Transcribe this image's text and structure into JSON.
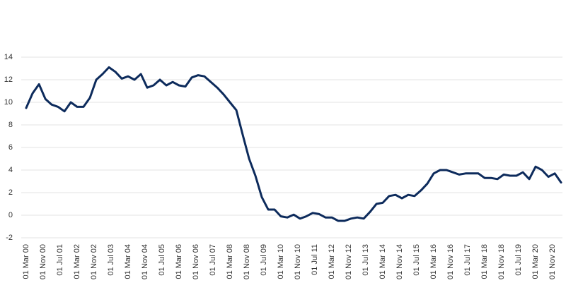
{
  "chart_data": {
    "type": "line",
    "color": "#0d2b5c",
    "grid": true,
    "x": [
      "2000-03-01",
      "2000-06-01",
      "2000-09-01",
      "2000-12-01",
      "2001-03-01",
      "2001-06-01",
      "2001-09-01",
      "2001-12-01",
      "2002-03-01",
      "2002-06-01",
      "2002-09-01",
      "2002-12-01",
      "2003-03-01",
      "2003-06-01",
      "2003-09-01",
      "2003-12-01",
      "2004-03-01",
      "2004-06-01",
      "2004-09-01",
      "2004-12-01",
      "2005-03-01",
      "2005-06-01",
      "2005-09-01",
      "2005-12-01",
      "2006-03-01",
      "2006-06-01",
      "2006-09-01",
      "2006-12-01",
      "2007-03-01",
      "2007-06-01",
      "2007-09-01",
      "2007-12-01",
      "2008-03-01",
      "2008-06-01",
      "2008-09-01",
      "2008-12-01",
      "2009-03-01",
      "2009-06-01",
      "2009-09-01",
      "2009-12-01",
      "2010-03-01",
      "2010-06-01",
      "2010-09-01",
      "2010-12-01",
      "2011-03-01",
      "2011-06-01",
      "2011-09-01",
      "2011-12-01",
      "2012-03-01",
      "2012-06-01",
      "2012-09-01",
      "2012-12-01",
      "2013-03-01",
      "2013-06-01",
      "2013-09-01",
      "2013-12-01",
      "2014-03-01",
      "2014-06-01",
      "2014-09-01",
      "2014-12-01",
      "2015-03-01",
      "2015-06-01",
      "2015-09-01",
      "2015-12-01",
      "2016-03-01",
      "2016-06-01",
      "2016-09-01",
      "2016-12-01",
      "2017-03-01",
      "2017-06-01",
      "2017-09-01",
      "2017-12-01",
      "2018-03-01",
      "2018-06-01",
      "2018-09-01",
      "2018-12-01",
      "2019-03-01",
      "2019-06-01",
      "2019-09-01",
      "2019-12-01",
      "2020-03-01",
      "2020-06-01",
      "2020-09-01",
      "2020-12-01",
      "2021-03-01"
    ],
    "values": [
      9.5,
      10.8,
      11.6,
      10.3,
      9.8,
      9.6,
      9.2,
      10.0,
      9.6,
      9.6,
      10.4,
      12.0,
      12.5,
      13.1,
      12.7,
      12.1,
      12.3,
      12.0,
      12.5,
      11.3,
      11.5,
      12.0,
      11.5,
      11.8,
      11.5,
      11.4,
      12.2,
      12.4,
      12.3,
      11.8,
      11.3,
      10.7,
      10.0,
      9.3,
      7.1,
      5.0,
      3.5,
      1.6,
      0.5,
      0.5,
      -0.1,
      -0.2,
      0.05,
      -0.3,
      -0.1,
      0.2,
      0.1,
      -0.2,
      -0.2,
      -0.5,
      -0.5,
      -0.3,
      -0.2,
      -0.3,
      0.3,
      1.0,
      1.1,
      1.7,
      1.8,
      1.5,
      1.8,
      1.7,
      2.2,
      2.8,
      3.7,
      4.0,
      4.0,
      3.8,
      3.6,
      3.7,
      3.7,
      3.7,
      3.3,
      3.3,
      3.2,
      3.6,
      3.5,
      3.5,
      3.8,
      3.2,
      4.3,
      4.0,
      3.4,
      3.7,
      2.9
    ],
    "xlim": [
      "2000-03-01",
      "2021-03-01"
    ],
    "xticks": [
      {
        "value": "2000-03-01",
        "label": "01 Mar 00"
      },
      {
        "value": "2000-11-01",
        "label": "01 Nov 00"
      },
      {
        "value": "2001-07-01",
        "label": "01 Jul 01"
      },
      {
        "value": "2002-03-01",
        "label": "01 Mar 02"
      },
      {
        "value": "2002-11-01",
        "label": "01 Nov 02"
      },
      {
        "value": "2003-07-01",
        "label": "01 Jul 03"
      },
      {
        "value": "2004-03-01",
        "label": "01 Mar 04"
      },
      {
        "value": "2004-11-01",
        "label": "01 Nov 04"
      },
      {
        "value": "2005-07-01",
        "label": "01 Jul 05"
      },
      {
        "value": "2006-03-01",
        "label": "01 Mar 06"
      },
      {
        "value": "2006-11-01",
        "label": "01 Nov 06"
      },
      {
        "value": "2007-07-01",
        "label": "01 Jul 07"
      },
      {
        "value": "2008-03-01",
        "label": "01 Mar 08"
      },
      {
        "value": "2008-11-01",
        "label": "01 Nov 08"
      },
      {
        "value": "2009-07-01",
        "label": "01 Jul 09"
      },
      {
        "value": "2010-03-01",
        "label": "01 Mar 10"
      },
      {
        "value": "2010-11-01",
        "label": "01 Nov 10"
      },
      {
        "value": "2011-07-01",
        "label": "01 Jul 11"
      },
      {
        "value": "2012-03-01",
        "label": "01 Mar 12"
      },
      {
        "value": "2012-11-01",
        "label": "01 Nov 12"
      },
      {
        "value": "2013-07-01",
        "label": "01 Jul 13"
      },
      {
        "value": "2014-03-01",
        "label": "01 Mar 14"
      },
      {
        "value": "2014-11-01",
        "label": "01 Nov 14"
      },
      {
        "value": "2015-07-01",
        "label": "01 Jul 15"
      },
      {
        "value": "2016-03-01",
        "label": "01 Mar 16"
      },
      {
        "value": "2016-11-01",
        "label": "01 Nov 16"
      },
      {
        "value": "2017-07-01",
        "label": "01 Jul 17"
      },
      {
        "value": "2018-03-01",
        "label": "01 Mar 18"
      },
      {
        "value": "2018-11-01",
        "label": "01 Nov 18"
      },
      {
        "value": "2019-07-01",
        "label": "01 Jul 19"
      },
      {
        "value": "2020-03-01",
        "label": "01 Mar 20"
      },
      {
        "value": "2020-11-01",
        "label": "01 Nov 20"
      }
    ],
    "ylim": [
      -2,
      14
    ],
    "yticks": [
      -2,
      0,
      2,
      4,
      6,
      8,
      10,
      12,
      14
    ]
  }
}
